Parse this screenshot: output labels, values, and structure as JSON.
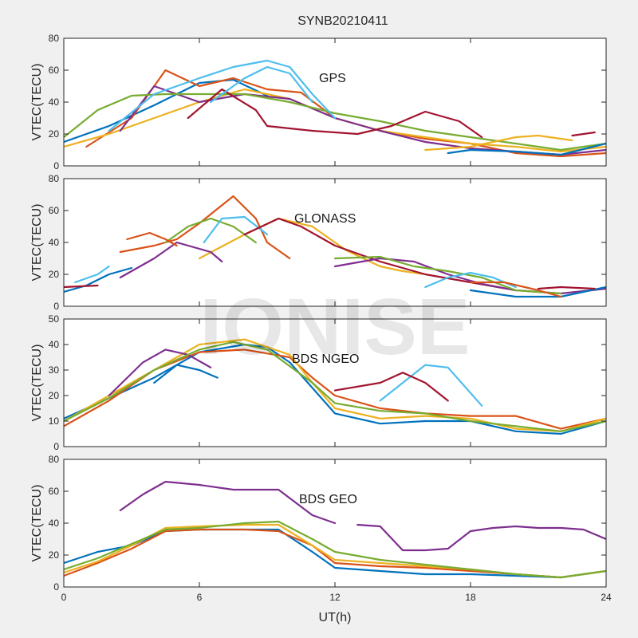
{
  "chart_data": {
    "type": "line",
    "title": "SYNB20210411",
    "xlabel": "UT(h)",
    "xlim": [
      0,
      24
    ],
    "xticks": [
      0,
      6,
      12,
      18,
      24
    ],
    "watermark": "IONISE",
    "panels": [
      {
        "label": "GPS",
        "ylabel": "VTEC(TECU)",
        "ylim": [
          0,
          80
        ],
        "yticks": [
          0,
          20,
          40,
          60,
          80
        ],
        "series": [
          {
            "color": "#0072bd",
            "x": [
              0,
              2,
              4,
              6,
              7.5,
              9
            ],
            "y": [
              15,
              25,
              38,
              52,
              54,
              44
            ]
          },
          {
            "color": "#d95319",
            "x": [
              1,
              3,
              4.5,
              6,
              7.5,
              9,
              10.5,
              12,
              14,
              16,
              18,
              20,
              22,
              24
            ],
            "y": [
              12,
              30,
              60,
              50,
              55,
              48,
              46,
              30,
              22,
              17,
              14,
              8,
              6,
              8
            ]
          },
          {
            "color": "#edb120",
            "x": [
              0,
              2,
              4,
              6,
              8,
              10,
              12,
              14,
              16,
              18,
              20,
              22,
              24
            ],
            "y": [
              12,
              20,
              30,
              40,
              48,
              42,
              30,
              22,
              18,
              14,
              12,
              9,
              12
            ]
          },
          {
            "color": "#7e2f8e",
            "x": [
              2.5,
              4,
              6,
              8,
              10,
              12,
              14,
              16,
              18,
              20,
              22,
              24
            ],
            "y": [
              22,
              50,
              40,
              45,
              42,
              30,
              22,
              15,
              11,
              9,
              7,
              10
            ]
          },
          {
            "color": "#77ac30",
            "x": [
              0,
              1.5,
              3,
              4.5,
              6,
              8,
              10,
              12,
              14,
              16,
              18,
              20,
              22,
              24
            ],
            "y": [
              18,
              35,
              44,
              45,
              45,
              45,
              40,
              33,
              28,
              22,
              18,
              14,
              10,
              14
            ]
          },
          {
            "color": "#4dbeee",
            "x": [
              2,
              4,
              6,
              7.5,
              9,
              10,
              11,
              12
            ],
            "y": [
              22,
              45,
              55,
              62,
              66,
              62,
              45,
              30
            ]
          },
          {
            "color": "#a2142f",
            "x": [
              5.5,
              7,
              8.5,
              9,
              11,
              13,
              14.5,
              16,
              17.5,
              18.5
            ],
            "y": [
              30,
              48,
              35,
              25,
              22,
              20,
              25,
              34,
              28,
              18
            ]
          },
          {
            "color": "#0072bd",
            "x": [
              17,
              18,
              20,
              22,
              24
            ],
            "y": [
              8,
              10,
              9,
              7,
              14
            ]
          },
          {
            "color": "#4dbeee",
            "x": [
              6.5,
              8,
              9,
              10,
              11
            ],
            "y": [
              40,
              55,
              62,
              58,
              40
            ]
          },
          {
            "color": "#edb120",
            "x": [
              16,
              18,
              20,
              21,
              22.5
            ],
            "y": [
              10,
              12,
              18,
              19,
              16
            ]
          },
          {
            "color": "#a2142f",
            "x": [
              22.5,
              23.5
            ],
            "y": [
              19,
              21
            ]
          }
        ]
      },
      {
        "label": "GLONASS",
        "ylabel": "VTEC(TECU)",
        "ylim": [
          0,
          80
        ],
        "yticks": [
          0,
          20,
          40,
          60,
          80
        ],
        "series": [
          {
            "color": "#0072bd",
            "x": [
              0,
              1,
              2,
              3
            ],
            "y": [
              9,
              13,
              20,
              24
            ]
          },
          {
            "color": "#d95319",
            "x": [
              2.5,
              4,
              5,
              6,
              7.5,
              8.5,
              9,
              10
            ],
            "y": [
              34,
              38,
              42,
              52,
              69,
              55,
              40,
              30
            ]
          },
          {
            "color": "#edb120",
            "x": [
              6,
              8,
              9.5,
              11,
              12.5,
              14,
              15,
              16
            ],
            "y": [
              30,
              45,
              55,
              50,
              35,
              25,
              22,
              20
            ]
          },
          {
            "color": "#7e2f8e",
            "x": [
              2.5,
              4,
              5,
              6.5,
              7
            ],
            "y": [
              18,
              30,
              40,
              34,
              28
            ]
          },
          {
            "color": "#77ac30",
            "x": [
              4.5,
              5.5,
              6.5,
              7.5,
              8.5
            ],
            "y": [
              40,
              50,
              55,
              50,
              40
            ]
          },
          {
            "color": "#4dbeee",
            "x": [
              0.5,
              1.5,
              2
            ],
            "y": [
              15,
              20,
              25
            ]
          },
          {
            "color": "#4dbeee",
            "x": [
              6.2,
              7,
              8,
              9
            ],
            "y": [
              40,
              55,
              56,
              45
            ]
          },
          {
            "color": "#a2142f",
            "x": [
              8,
              9.5,
              10.5,
              12,
              14,
              16,
              18,
              20
            ],
            "y": [
              45,
              55,
              50,
              38,
              28,
              20,
              15,
              10
            ]
          },
          {
            "color": "#d95319",
            "x": [
              2.8,
              3.8,
              4.5,
              5
            ],
            "y": [
              42,
              46,
              42,
              38
            ]
          },
          {
            "color": "#7e2f8e",
            "x": [
              12,
              14,
              15.5,
              17,
              18.5,
              20,
              22,
              24
            ],
            "y": [
              25,
              30,
              28,
              20,
              14,
              10,
              8,
              11
            ]
          },
          {
            "color": "#77ac30",
            "x": [
              12,
              14,
              15.5,
              17,
              18.5,
              20,
              22
            ],
            "y": [
              30,
              31,
              25,
              22,
              18,
              10,
              8
            ]
          },
          {
            "color": "#4dbeee",
            "x": [
              16,
              17,
              18,
              19,
              20
            ],
            "y": [
              12,
              18,
              21,
              18,
              12
            ]
          },
          {
            "color": "#0072bd",
            "x": [
              18,
              20,
              22,
              24
            ],
            "y": [
              10,
              6,
              6,
              12
            ]
          },
          {
            "color": "#a2142f",
            "x": [
              21,
              22,
              23.5
            ],
            "y": [
              11,
              12,
              11
            ]
          },
          {
            "color": "#d95319",
            "x": [
              18,
              19.5,
              21,
              22
            ],
            "y": [
              15,
              15,
              10,
              6
            ]
          },
          {
            "color": "#a2142f",
            "x": [
              0,
              1.5
            ],
            "y": [
              12,
              13
            ]
          }
        ]
      },
      {
        "label": "BDS NGEO",
        "ylabel": "VTEC(TECU)",
        "ylim": [
          0,
          50
        ],
        "yticks": [
          0,
          10,
          20,
          30,
          40,
          50
        ],
        "series": [
          {
            "color": "#0072bd",
            "x": [
              0,
              2,
              4,
              6,
              8,
              9,
              10,
              11,
              12,
              14,
              16,
              18,
              20,
              22,
              24
            ],
            "y": [
              11,
              19,
              27,
              37,
              40,
              39,
              33,
              23,
              13,
              9,
              10,
              10,
              6,
              5,
              10
            ]
          },
          {
            "color": "#d95319",
            "x": [
              0,
              2,
              4,
              6,
              8,
              10,
              11,
              12,
              14,
              16,
              18,
              20,
              22,
              24
            ],
            "y": [
              8,
              18,
              30,
              37,
              38,
              35,
              27,
              20,
              15,
              13,
              12,
              12,
              7,
              11
            ]
          },
          {
            "color": "#edb120",
            "x": [
              0,
              2,
              4,
              6,
              8,
              10,
              11,
              12,
              14,
              16,
              18,
              20,
              22,
              24
            ],
            "y": [
              10,
              20,
              30,
              40,
              42,
              36,
              25,
              15,
              11,
              12,
              11,
              7,
              6,
              11
            ]
          },
          {
            "color": "#7e2f8e",
            "x": [
              2,
              3.5,
              4.5,
              5.5,
              6.5
            ],
            "y": [
              20,
              33,
              38,
              36,
              31
            ]
          },
          {
            "color": "#77ac30",
            "x": [
              0,
              2,
              4,
              6,
              7.5,
              9,
              11,
              12,
              14,
              16,
              18,
              20,
              22,
              24
            ],
            "y": [
              10,
              19,
              30,
              38,
              41,
              38,
              25,
              17,
              14,
              13,
              10,
              8,
              6,
              10
            ]
          },
          {
            "color": "#4dbeee",
            "x": [
              14,
              15,
              16,
              17,
              18.5
            ],
            "y": [
              18,
              25,
              32,
              31,
              16
            ]
          },
          {
            "color": "#a2142f",
            "x": [
              12,
              14,
              15,
              16,
              17
            ],
            "y": [
              22,
              25,
              29,
              25,
              18
            ]
          },
          {
            "color": "#0072bd",
            "x": [
              4,
              5,
              6,
              6.8
            ],
            "y": [
              25,
              32,
              30,
              27
            ]
          }
        ]
      },
      {
        "label": "BDS GEO",
        "ylabel": "VTEC(TECU)",
        "ylim": [
          0,
          80
        ],
        "yticks": [
          0,
          20,
          40,
          60,
          80
        ],
        "series": [
          {
            "color": "#0072bd",
            "x": [
              0,
              1.5,
              3,
              4.5,
              6,
              8,
              9.5,
              11,
              12,
              14,
              16,
              18,
              20,
              22,
              24
            ],
            "y": [
              15,
              22,
              26,
              35,
              36,
              36,
              36,
              22,
              12,
              10,
              8,
              8,
              7,
              6,
              10
            ]
          },
          {
            "color": "#d95319",
            "x": [
              0,
              1.5,
              3,
              4.5,
              6,
              8,
              9.5,
              11,
              12,
              14,
              16,
              18,
              20,
              22,
              24
            ],
            "y": [
              7,
              15,
              24,
              35,
              36,
              36,
              35,
              26,
              15,
              13,
              12,
              10,
              8,
              6,
              10
            ]
          },
          {
            "color": "#edb120",
            "x": [
              0,
              1.5,
              3,
              4.5,
              6,
              8,
              9.5,
              11,
              12,
              14,
              16,
              18,
              20,
              22,
              24
            ],
            "y": [
              9,
              16,
              26,
              37,
              38,
              39,
              39,
              26,
              17,
              15,
              13,
              11,
              8,
              6,
              10
            ]
          },
          {
            "color": "#77ac30",
            "x": [
              0,
              1.5,
              3,
              4.5,
              6,
              8,
              9.5,
              11,
              12,
              14,
              16,
              18,
              20,
              22,
              24
            ],
            "y": [
              11,
              18,
              27,
              36,
              37,
              40,
              41,
              30,
              22,
              17,
              14,
              11,
              8,
              6,
              10
            ]
          },
          {
            "color": "#7e2f8e",
            "x": [
              2.5,
              3.5,
              4.5,
              6,
              7.5,
              9.5,
              11,
              12
            ],
            "y": [
              48,
              58,
              66,
              64,
              61,
              61,
              45,
              40
            ]
          },
          {
            "color": "#7e2f8e",
            "x": [
              13,
              14,
              15,
              16,
              17,
              18,
              19,
              20,
              21,
              22,
              23,
              24
            ],
            "y": [
              39,
              38,
              23,
              23,
              24,
              35,
              37,
              38,
              37,
              37,
              36,
              30
            ]
          }
        ]
      }
    ]
  }
}
